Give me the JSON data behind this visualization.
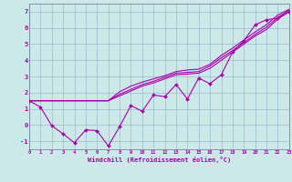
{
  "xlabel": "Windchill (Refroidissement éolien,°C)",
  "background_color": "#cce8e8",
  "grid_color": "#99bbcc",
  "line_color": "#aa00aa",
  "x_data": [
    0,
    1,
    2,
    3,
    4,
    5,
    6,
    7,
    8,
    9,
    10,
    11,
    12,
    13,
    14,
    15,
    16,
    17,
    18,
    19,
    20,
    21,
    22,
    23
  ],
  "y_scatter": [
    1.5,
    1.1,
    -0.05,
    -0.55,
    -1.1,
    -0.3,
    -0.35,
    -1.3,
    -0.1,
    1.2,
    0.85,
    1.85,
    1.75,
    2.5,
    1.6,
    2.9,
    2.55,
    3.1,
    4.5,
    5.2,
    6.2,
    6.5,
    6.6,
    7.0
  ],
  "y_line1": [
    1.5,
    1.5,
    1.5,
    1.5,
    1.5,
    1.5,
    1.5,
    1.5,
    1.8,
    2.1,
    2.4,
    2.6,
    2.85,
    3.1,
    3.15,
    3.2,
    3.5,
    4.0,
    4.5,
    5.0,
    5.5,
    5.9,
    6.55,
    7.0
  ],
  "y_line2": [
    1.5,
    1.5,
    1.5,
    1.5,
    1.5,
    1.5,
    1.5,
    1.5,
    1.9,
    2.2,
    2.5,
    2.7,
    2.95,
    3.2,
    3.25,
    3.3,
    3.65,
    4.15,
    4.6,
    5.1,
    5.6,
    6.05,
    6.65,
    7.1
  ],
  "y_line3": [
    1.5,
    1.5,
    1.5,
    1.5,
    1.5,
    1.5,
    1.5,
    1.5,
    2.05,
    2.4,
    2.65,
    2.85,
    3.05,
    3.3,
    3.4,
    3.45,
    3.75,
    4.3,
    4.75,
    5.25,
    5.75,
    6.2,
    6.8,
    7.15
  ],
  "xlim": [
    0,
    23
  ],
  "ylim": [
    -1.5,
    7.5
  ],
  "xticks": [
    0,
    1,
    2,
    3,
    4,
    5,
    6,
    7,
    8,
    9,
    10,
    11,
    12,
    13,
    14,
    15,
    16,
    17,
    18,
    19,
    20,
    21,
    22,
    23
  ],
  "yticks": [
    -1,
    0,
    1,
    2,
    3,
    4,
    5,
    6,
    7
  ]
}
